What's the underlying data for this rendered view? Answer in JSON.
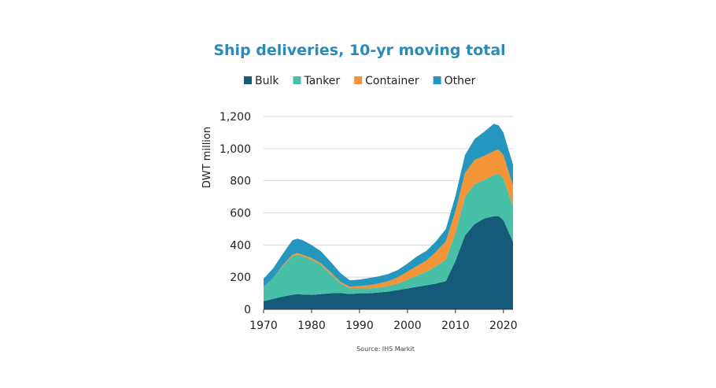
{
  "chart_data": {
    "type": "area",
    "stacked": true,
    "title": "Ship deliveries, 10-yr moving total",
    "ylabel": "DWT million",
    "xlabel": "",
    "xlim": [
      1970,
      2022
    ],
    "ylim": [
      0,
      1200
    ],
    "x_ticks": [
      "1970",
      "1980",
      "1990",
      "2000",
      "2010",
      "2020"
    ],
    "y_ticks": [
      "0",
      "200",
      "400",
      "600",
      "800",
      "1,000",
      "1,200"
    ],
    "grid": "horizontal",
    "legend_position": "top",
    "source": "Source: IHS Markit",
    "x": [
      1970,
      1972,
      1974,
      1976,
      1977,
      1978,
      1980,
      1982,
      1984,
      1986,
      1988,
      1990,
      1992,
      1994,
      1996,
      1998,
      2000,
      2002,
      2004,
      2006,
      2008,
      2010,
      2012,
      2014,
      2016,
      2018,
      2019,
      2020,
      2022
    ],
    "series": [
      {
        "name": "Bulk",
        "color": "#155a78",
        "values": [
          50,
          65,
          80,
          90,
          95,
          92,
          90,
          95,
          100,
          102,
          95,
          100,
          100,
          105,
          110,
          120,
          130,
          140,
          150,
          160,
          175,
          300,
          460,
          530,
          565,
          580,
          580,
          555,
          420
        ]
      },
      {
        "name": "Tanker",
        "color": "#48c0a8",
        "values": [
          90,
          130,
          190,
          240,
          245,
          240,
          220,
          180,
          120,
          60,
          35,
          30,
          30,
          30,
          35,
          40,
          55,
          70,
          85,
          110,
          135,
          175,
          240,
          250,
          240,
          255,
          265,
          260,
          220
        ]
      },
      {
        "name": "Container",
        "color": "#f39536",
        "values": [
          0,
          0,
          5,
          10,
          10,
          10,
          10,
          10,
          10,
          10,
          10,
          15,
          20,
          25,
          30,
          40,
          50,
          60,
          70,
          90,
          115,
          135,
          150,
          150,
          150,
          150,
          150,
          145,
          130
        ]
      },
      {
        "name": "Other",
        "color": "#2596be",
        "values": [
          50,
          60,
          70,
          90,
          90,
          90,
          80,
          75,
          65,
          55,
          40,
          40,
          45,
          45,
          45,
          45,
          50,
          60,
          60,
          65,
          75,
          95,
          110,
          130,
          150,
          170,
          150,
          140,
          130
        ]
      }
    ]
  }
}
